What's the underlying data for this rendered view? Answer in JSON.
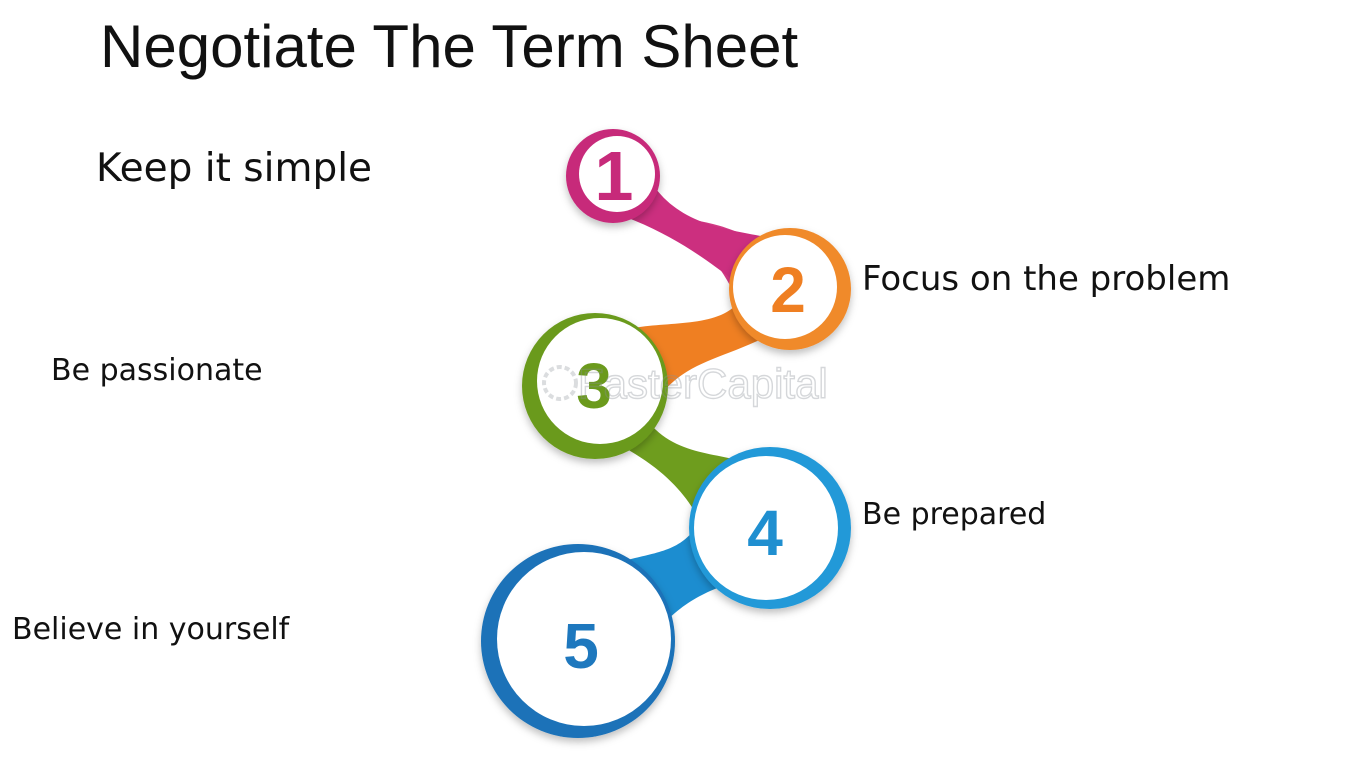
{
  "slide": {
    "title": "Negotiate The Term Sheet"
  },
  "steps": [
    {
      "number": "1",
      "label": "Keep it simple",
      "color": "#c72a7a"
    },
    {
      "number": "2",
      "label": "Focus on the problem",
      "color": "#ef7f22"
    },
    {
      "number": "3",
      "label": "Be passionate",
      "color": "#6b9a1c"
    },
    {
      "number": "4",
      "label": "Be prepared",
      "color": "#1f8fd0"
    },
    {
      "number": "5",
      "label": "Believe in yourself",
      "color": "#1e78be"
    }
  ],
  "watermark": {
    "text": "FasterCapital"
  }
}
